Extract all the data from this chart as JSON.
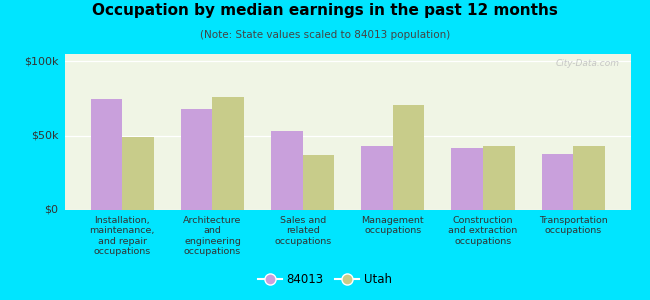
{
  "title": "Occupation by median earnings in the past 12 months",
  "subtitle": "(Note: State values scaled to 84013 population)",
  "categories": [
    "Installation,\nmaintenance,\nand repair\noccupations",
    "Architecture\nand\nengineering\noccupations",
    "Sales and\nrelated\noccupations",
    "Management\noccupations",
    "Construction\nand extraction\noccupations",
    "Transportation\noccupations"
  ],
  "values_84013": [
    75000,
    68000,
    53000,
    43000,
    42000,
    38000
  ],
  "values_utah": [
    49000,
    76000,
    37000,
    71000,
    43000,
    43000
  ],
  "color_84013": "#c9a0dc",
  "color_utah": "#c8cc8a",
  "ylim": [
    0,
    105000
  ],
  "yticks": [
    0,
    50000,
    100000
  ],
  "ytick_labels": [
    "$0",
    "$50k",
    "$100k"
  ],
  "background_color": "#00e5ff",
  "plot_bg_color": "#f0f5e5",
  "legend_label_84013": "84013",
  "legend_label_utah": "Utah",
  "bar_width": 0.35,
  "watermark": "City-Data.com"
}
